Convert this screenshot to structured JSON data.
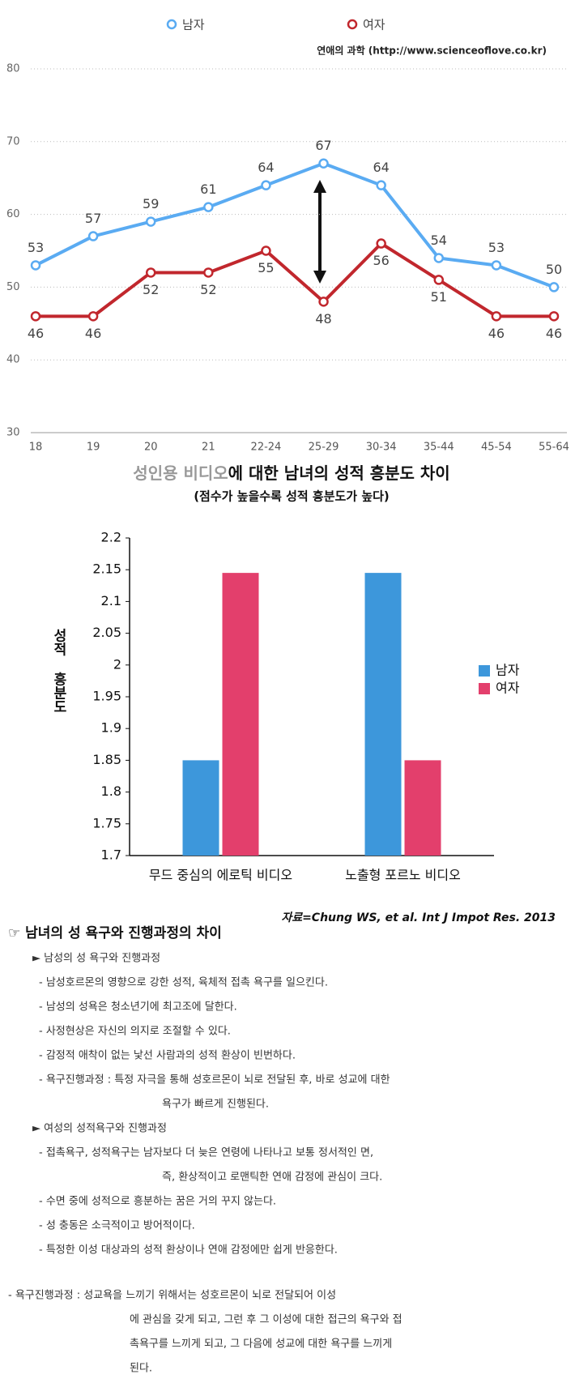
{
  "chart_data": [
    {
      "type": "line",
      "source": "연애의 과학 (http://www.scienceoflove.co.kr)",
      "categories": [
        "18",
        "19",
        "20",
        "21",
        "22-24",
        "25-29",
        "30-34",
        "35-44",
        "45-54",
        "55-64"
      ],
      "series": [
        {
          "name": "남자",
          "color": "#5aabf2",
          "values": [
            53,
            57,
            59,
            61,
            64,
            67,
            64,
            54,
            53,
            50
          ]
        },
        {
          "name": "여자",
          "color": "#c1272d",
          "values": [
            46,
            46,
            52,
            52,
            55,
            48,
            56,
            51,
            46,
            46
          ]
        }
      ],
      "ylim": [
        30,
        80
      ],
      "yticks": [
        30,
        40,
        50,
        60,
        70,
        80
      ],
      "grid": true,
      "legend": "top"
    },
    {
      "type": "bar",
      "title_parts": [
        "성인용 비디오",
        "에 대한 남녀의 성적 흥분도 차이"
      ],
      "subtitle": "(점수가 높을수록 성적 흥분도가 높다)",
      "ylabel": "성적 흥분도",
      "categories": [
        "무드 중심의 에로틱 비디오",
        "노출형 포르노 비디오"
      ],
      "series": [
        {
          "name": "남자",
          "color": "#3d97db",
          "values": [
            1.85,
            2.145
          ]
        },
        {
          "name": "여자",
          "color": "#e33f6c",
          "values": [
            2.145,
            1.85
          ]
        }
      ],
      "ylim": [
        1.7,
        2.2
      ],
      "yticks": [
        1.7,
        1.75,
        1.8,
        1.85,
        1.9,
        1.95,
        2,
        2.05,
        2.1,
        2.15,
        2.2
      ],
      "grid": false,
      "legend": "right",
      "source": "자료=Chung WS, et al. Int J Impot Res. 2013"
    }
  ],
  "document": {
    "heading": "☞ 남녀의 성 욕구와 진행과정의 차이",
    "sections": [
      {
        "heading": "► 남성의 성 욕구와 진행과정",
        "items": [
          [
            "- 남성호르몬의 영향으로 강한 성적, 육체적 접촉 욕구를 일으킨다."
          ],
          [
            "- 남성의 성욕은 청소년기에 최고조에 달한다."
          ],
          [
            "- 사정현상은 자신의 의지로 조절할 수 있다."
          ],
          [
            "- 감정적 애착이 없는 낯선 사람과의 성적 환상이 빈번하다."
          ],
          [
            "- 욕구진행과정 : 특정 자극을 통해 성호르몬이 뇌로 전달된 후, 바로 성교에 대한",
            "욕구가 빠르게 진행된다."
          ]
        ]
      },
      {
        "heading": "► 여성의 성적욕구와 진행과정",
        "items": [
          [
            "-  접촉욕구, 성적욕구는 남자보다 더 늦은 연령에 나타나고 보통 정서적인 면,",
            "즉, 환상적이고 로맨틱한 연애 감정에 관심이 크다."
          ],
          [
            "-  수면 중에 성적으로 흥분하는 꿈은 거의 꾸지 않는다."
          ],
          [
            "-  성 충동은 소극적이고 방어적이다."
          ],
          [
            "-  특정한 이성 대상과의 성적 환상이나 연애 감정에만 쉽게 반응한다."
          ]
        ]
      }
    ],
    "tail": [
      "-   욕구진행과정  :  성교욕을  느끼기  위해서는  성호르몬이  뇌로  전달되어  이성",
      "에 관심을 갖게 되고, 그런 후 그 이성에 대한 접근의 욕구와 접",
      "촉욕구를 느끼게 되고, 그  다음에 성교에 대한 욕구를 느끼게",
      "된다."
    ]
  }
}
